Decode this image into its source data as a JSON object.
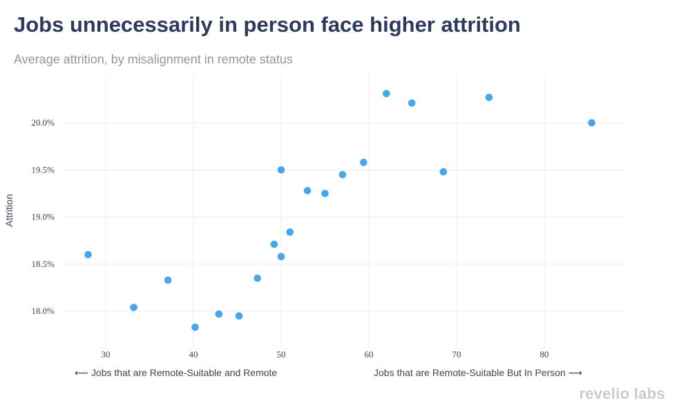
{
  "header": {
    "title": "Jobs unnecessarily in person face higher attrition",
    "subtitle": "Average attrition, by misalignment in remote status"
  },
  "brand": {
    "text": "revelio labs"
  },
  "colors": {
    "marker": "#45a8ec",
    "grid": "#ececec",
    "title": "#2c3a5c",
    "subtitle": "#8f97a3",
    "text": "#3a4257"
  },
  "chart_data": {
    "type": "scatter",
    "title": "Jobs unnecessarily in person face higher attrition",
    "subtitle": "Average attrition, by misalignment in remote status",
    "xlabel": "",
    "ylabel": "Attrition",
    "xlim": [
      25,
      89
    ],
    "ylim": [
      17.7,
      20.45
    ],
    "x_ticks": [
      30,
      40,
      50,
      60,
      70,
      80
    ],
    "x_tick_labels": [
      "30",
      "40",
      "50",
      "60",
      "70",
      "80"
    ],
    "y_ticks": [
      18.0,
      18.5,
      19.0,
      19.5,
      20.0
    ],
    "y_tick_labels": [
      "18.0%",
      "18.5%",
      "19.0%",
      "19.5%",
      "20.0%"
    ],
    "grid": true,
    "annotations": {
      "left": "⟵ Jobs that are Remote-Suitable and Remote",
      "right": "Jobs that are Remote-Suitable But In Person ⟶"
    },
    "points": [
      {
        "x": 28.0,
        "y": 18.6
      },
      {
        "x": 33.2,
        "y": 18.04
      },
      {
        "x": 37.1,
        "y": 18.33
      },
      {
        "x": 40.2,
        "y": 17.83
      },
      {
        "x": 42.9,
        "y": 17.97
      },
      {
        "x": 45.2,
        "y": 17.95
      },
      {
        "x": 47.3,
        "y": 18.35
      },
      {
        "x": 49.2,
        "y": 18.71
      },
      {
        "x": 50.0,
        "y": 18.58
      },
      {
        "x": 50.0,
        "y": 19.5
      },
      {
        "x": 51.0,
        "y": 18.84
      },
      {
        "x": 53.0,
        "y": 19.28
      },
      {
        "x": 55.0,
        "y": 19.25
      },
      {
        "x": 57.0,
        "y": 19.45
      },
      {
        "x": 59.4,
        "y": 19.58
      },
      {
        "x": 62.0,
        "y": 20.31
      },
      {
        "x": 64.9,
        "y": 20.21
      },
      {
        "x": 68.5,
        "y": 19.48
      },
      {
        "x": 73.7,
        "y": 20.27
      },
      {
        "x": 85.4,
        "y": 20.0
      }
    ]
  }
}
